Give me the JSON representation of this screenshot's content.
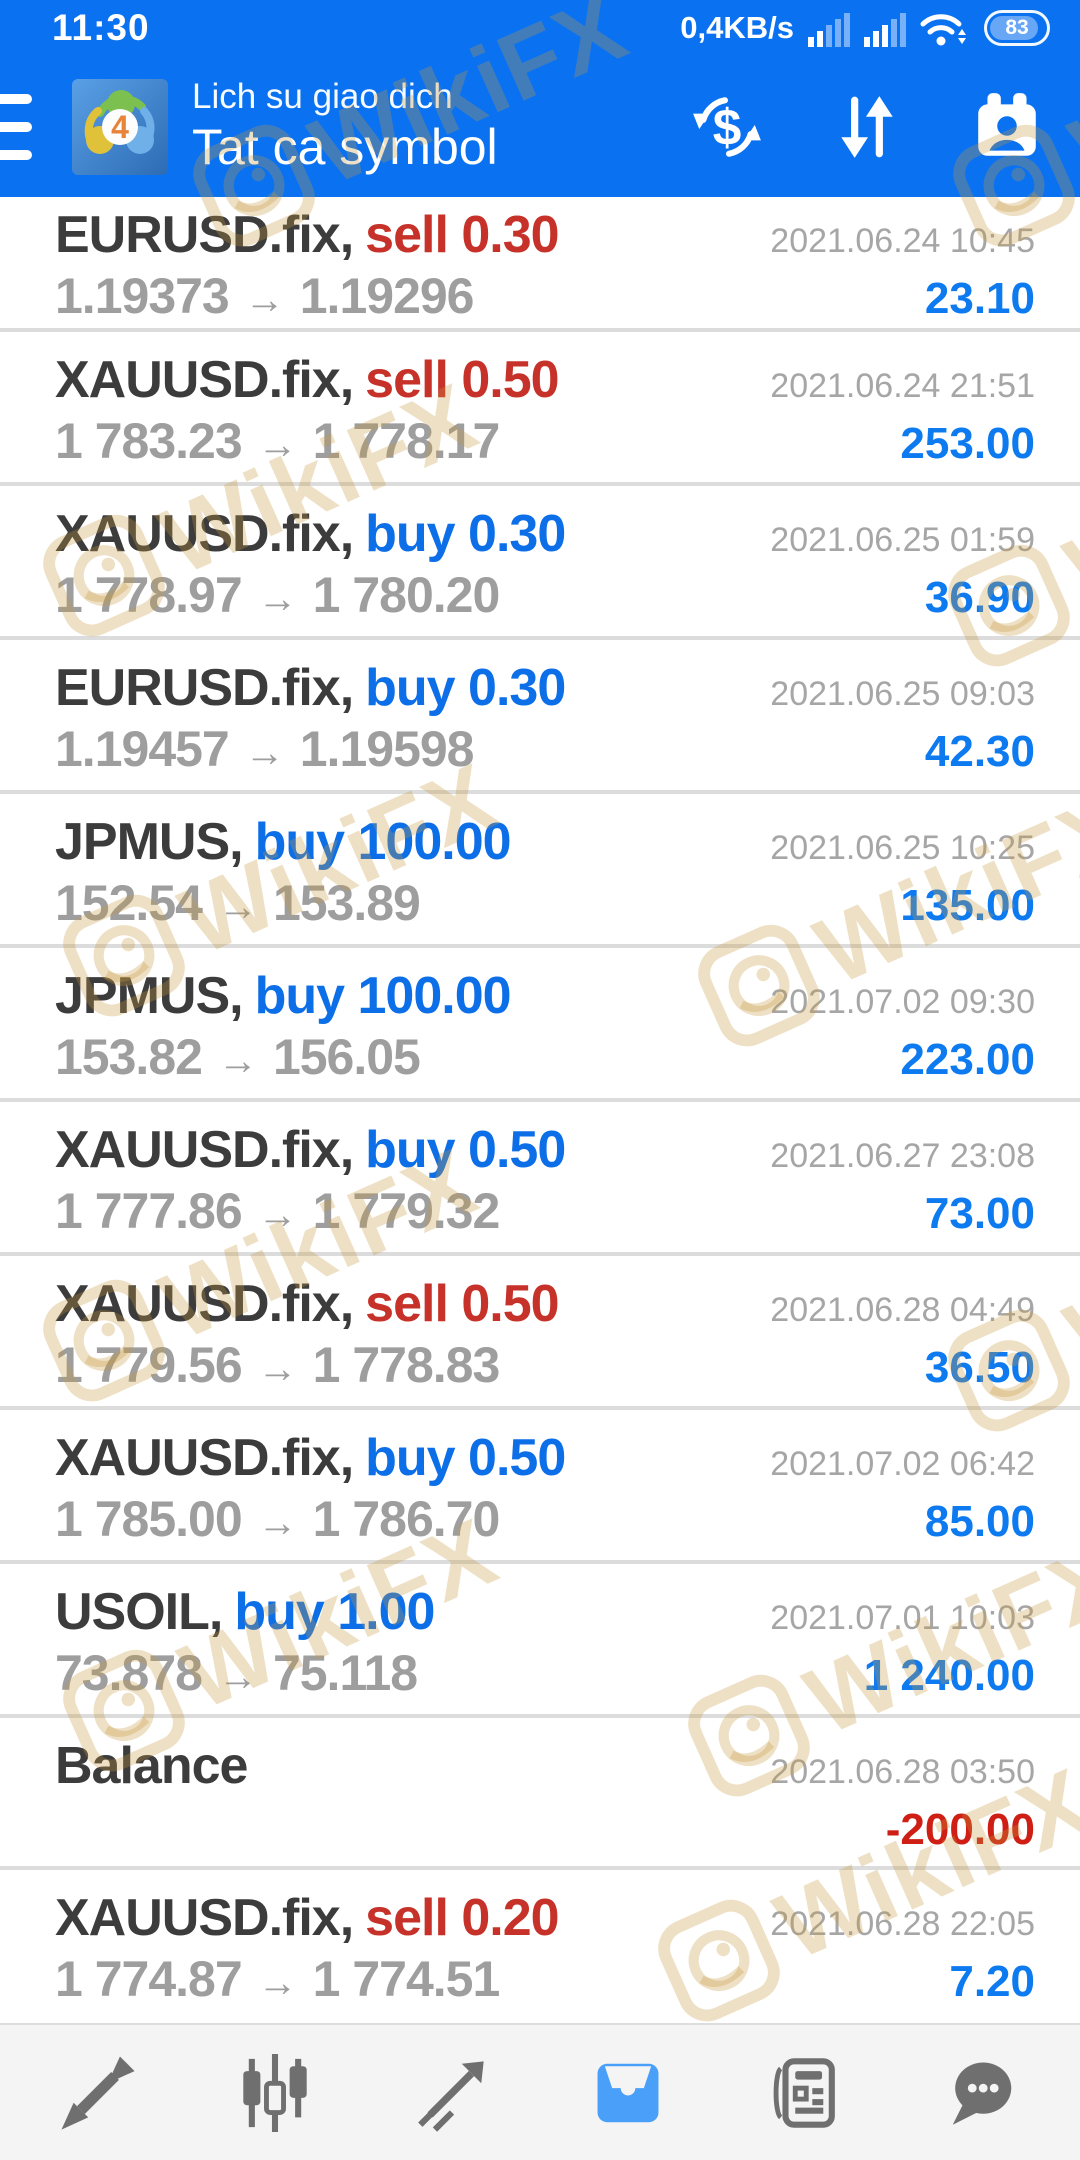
{
  "status_bar": {
    "time": "11:30",
    "net_speed": "0,4KB/s",
    "battery_percent": "83"
  },
  "header": {
    "title": "Lich su giao dich",
    "subtitle": "Tat ca symbol",
    "app_icon_label": "4",
    "action_icons": [
      "currency-exchange-icon",
      "sort-updown-icon",
      "contact-card-icon"
    ]
  },
  "glyphs": {
    "arrow": "→"
  },
  "trades": [
    {
      "symbol_label": "EURUSD.fix,",
      "side": "sell",
      "side_label": "sell 0.30",
      "open": "1.19373",
      "close": "1.19296",
      "datetime": "2021.06.24 10:45",
      "profit": "23.10"
    },
    {
      "symbol_label": "XAUUSD.fix,",
      "side": "sell",
      "side_label": "sell 0.50",
      "open": "1 783.23",
      "close": "1 778.17",
      "datetime": "2021.06.24 21:51",
      "profit": "253.00"
    },
    {
      "symbol_label": "XAUUSD.fix,",
      "side": "buy",
      "side_label": "buy 0.30",
      "open": "1 778.97",
      "close": "1 780.20",
      "datetime": "2021.06.25 01:59",
      "profit": "36.90"
    },
    {
      "symbol_label": "EURUSD.fix,",
      "side": "buy",
      "side_label": "buy 0.30",
      "open": "1.19457",
      "close": "1.19598",
      "datetime": "2021.06.25 09:03",
      "profit": "42.30"
    },
    {
      "symbol_label": "JPMUS,",
      "side": "buy",
      "side_label": "buy 100.00",
      "open": "152.54",
      "close": "153.89",
      "datetime": "2021.06.25 10:25",
      "profit": "135.00"
    },
    {
      "symbol_label": "JPMUS,",
      "side": "buy",
      "side_label": "buy 100.00",
      "open": "153.82",
      "close": "156.05",
      "datetime": "2021.07.02 09:30",
      "profit": "223.00"
    },
    {
      "symbol_label": "XAUUSD.fix,",
      "side": "buy",
      "side_label": "buy 0.50",
      "open": "1 777.86",
      "close": "1 779.32",
      "datetime": "2021.06.27 23:08",
      "profit": "73.00"
    },
    {
      "symbol_label": "XAUUSD.fix,",
      "side": "sell",
      "side_label": "sell 0.50",
      "open": "1 779.56",
      "close": "1 778.83",
      "datetime": "2021.06.28 04:49",
      "profit": "36.50"
    },
    {
      "symbol_label": "XAUUSD.fix,",
      "side": "buy",
      "side_label": "buy 0.50",
      "open": "1 785.00",
      "close": "1 786.70",
      "datetime": "2021.07.02 06:42",
      "profit": "85.00"
    },
    {
      "symbol_label": "USOIL,",
      "side": "buy",
      "side_label": "buy 1.00",
      "open": "73.878",
      "close": "75.118",
      "datetime": "2021.07.01 10:03",
      "profit": "1 240.00"
    },
    {
      "symbol_label": "Balance",
      "side": null,
      "side_label": null,
      "open": null,
      "close": null,
      "datetime": "2021.06.28 03:50",
      "profit": "-200.00",
      "balance": true
    },
    {
      "symbol_label": "XAUUSD.fix,",
      "side": "sell",
      "side_label": "sell 0.20",
      "open": "1 774.87",
      "close": "1 774.51",
      "datetime": "2021.06.28 22:05",
      "profit": "7.20"
    }
  ],
  "watermark": {
    "text": "WikiFX"
  },
  "nav": {
    "active_index": 3,
    "items": [
      "trade-arrows-icon",
      "candlestick-chart-icon",
      "line-chart-icon",
      "trade-tray-icon",
      "news-icon",
      "messages-icon"
    ]
  },
  "colors": {
    "header_blue": "#0a72f0",
    "buy_blue": "#0d6fe8",
    "sell_red": "#c63229",
    "profit_blue": "#0d7af0",
    "loss_red": "#cf1f14",
    "nav_active_blue": "#4aa0f8",
    "watermark_gold": "#c69940"
  }
}
